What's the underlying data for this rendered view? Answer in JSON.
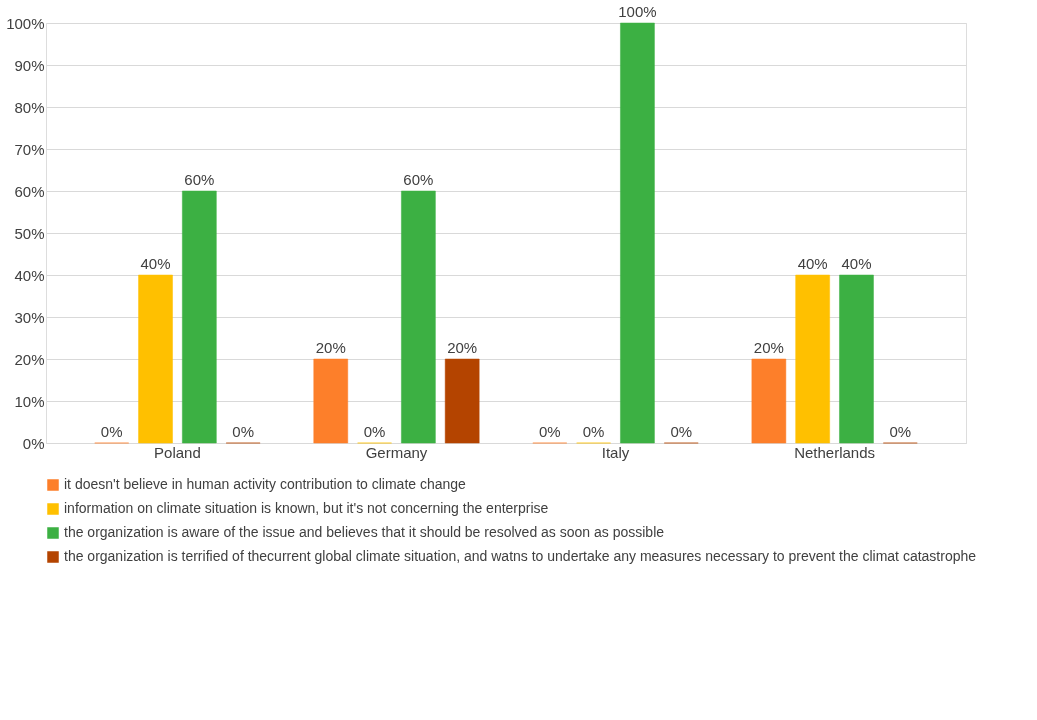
{
  "chart_data": {
    "type": "bar",
    "categories": [
      "Poland",
      "Germany",
      "Italy",
      "Netherlands"
    ],
    "series": [
      {
        "name": "it doesn't believe in human activity contribution to climate change",
        "color": "#fd7f2a",
        "values": [
          0,
          20,
          0,
          20
        ],
        "value_labels": [
          "0%",
          "20%",
          "0%",
          "20%"
        ]
      },
      {
        "name": "information on climate situation is known, but it's not concerning the enterprise",
        "color": "#ffc000",
        "values": [
          40,
          0,
          0,
          40
        ],
        "value_labels": [
          "40%",
          "0%",
          "0%",
          "40%"
        ]
      },
      {
        "name": "the organization is aware of the issue and believes that it should be resolved as soon as possible",
        "color": "#3cb043",
        "values": [
          60,
          60,
          100,
          40
        ],
        "value_labels": [
          "60%",
          "60%",
          "100%",
          "40%"
        ]
      },
      {
        "name": "the organization is terrified of thecurrent global climate situation, and watns to undertake any measures necessary to prevent the climat catastrophe",
        "color": "#b44400",
        "values": [
          0,
          20,
          0,
          0
        ],
        "value_labels": [
          "0%",
          "20%",
          "0%",
          "0%"
        ]
      }
    ],
    "ylim": [
      0,
      100
    ],
    "yticks": [
      {
        "value": 0,
        "label": "0%"
      },
      {
        "value": 10,
        "label": "10%"
      },
      {
        "value": 20,
        "label": "20%"
      },
      {
        "value": 30,
        "label": "30%"
      },
      {
        "value": 40,
        "label": "40%"
      },
      {
        "value": 50,
        "label": "50%"
      },
      {
        "value": 60,
        "label": "60%"
      },
      {
        "value": 70,
        "label": "70%"
      },
      {
        "value": 80,
        "label": "80%"
      },
      {
        "value": 90,
        "label": "90%"
      },
      {
        "value": 100,
        "label": "100%"
      }
    ],
    "grid": "y",
    "legend": "bottom"
  }
}
